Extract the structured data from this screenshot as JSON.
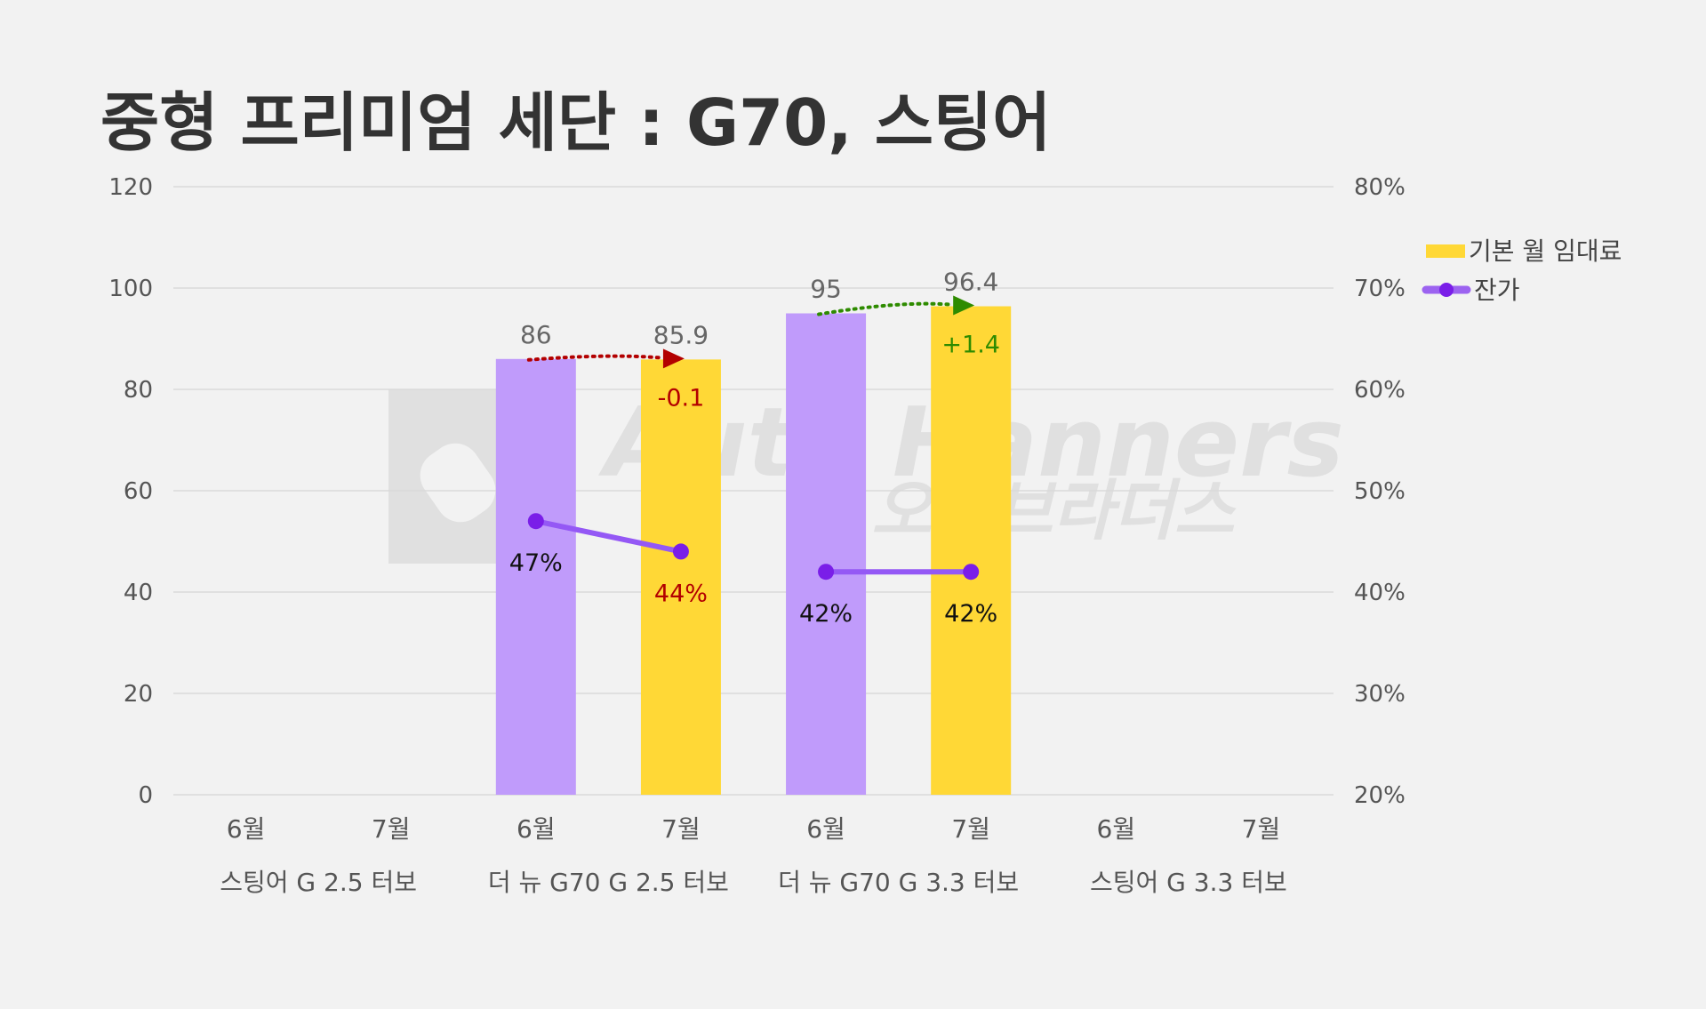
{
  "chart_data": {
    "type": "bar",
    "title": "중형 프리미엄 세단 : G70, 스팅어",
    "groups": [
      "스팅어 G 2.5 터보",
      "더 뉴 G70 G 2.5 터보",
      "더 뉴 G70 G 3.3 터보",
      "스팅어 G 3.3 터보"
    ],
    "months": [
      "6월",
      "7월"
    ],
    "left_axis": {
      "ylim": [
        0,
        120
      ],
      "ticks": [
        0,
        20,
        40,
        60,
        80,
        100,
        120
      ]
    },
    "right_axis": {
      "ylim": [
        20,
        80
      ],
      "ticks": [
        "20%",
        "30%",
        "40%",
        "50%",
        "60%",
        "70%",
        "80%"
      ]
    },
    "grid": true,
    "legend_position": "right",
    "series": [
      {
        "name": "기본 월 임대료",
        "type": "bar",
        "axis": "left",
        "values": [
          [
            null,
            null
          ],
          [
            86,
            85.9
          ],
          [
            95,
            96.4
          ],
          [
            null,
            null
          ]
        ],
        "labels": [
          [
            "",
            ""
          ],
          [
            "86",
            "85.9"
          ],
          [
            "95",
            "96.4"
          ],
          [
            "",
            ""
          ]
        ]
      },
      {
        "name": "잔가",
        "type": "line",
        "axis": "right",
        "values": [
          [
            null,
            null
          ],
          [
            47,
            44
          ],
          [
            42,
            42
          ],
          [
            null,
            null
          ]
        ],
        "labels": [
          [
            "",
            ""
          ],
          [
            "47%",
            "44%"
          ],
          [
            "42%",
            "42%"
          ],
          [
            "",
            ""
          ]
        ]
      }
    ],
    "annotations": [
      {
        "group": 1,
        "text": "-0.1",
        "color": "#b30000"
      },
      {
        "group": 2,
        "text": "+1.4",
        "color": "#2e8b00"
      }
    ]
  },
  "colors": {
    "background": "#f2f2f2",
    "june_bar": "#c09bfb",
    "july_bar": "#ffd836",
    "line": "#9458f5",
    "marker": "#7a1ee8",
    "grid": "#d9d9d9",
    "down": "#b30000",
    "up": "#2e8b00",
    "legend_line": "#9c63f0"
  },
  "watermark": {
    "text_en": "Auto Hanners",
    "text_ko": "오토브라더스",
    "icon": "auto-brothers-logo-icon"
  }
}
